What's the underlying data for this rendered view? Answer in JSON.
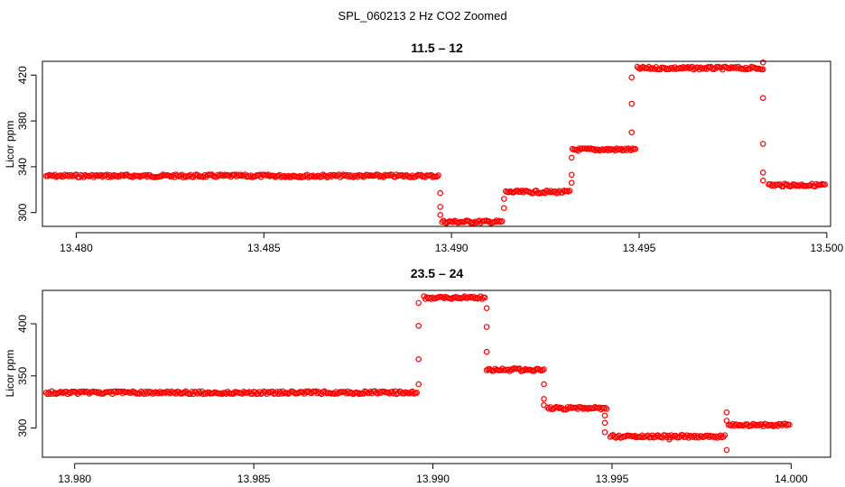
{
  "figure": {
    "title": "SPL_060213  2 Hz CO2 Zoomed",
    "point_color": "#ff0000"
  },
  "chart_data": [
    {
      "type": "scatter",
      "title": "11.5 – 12",
      "xlabel": "",
      "ylabel": "Licor ppm",
      "xlim": [
        13.4791,
        13.5001
      ],
      "ylim": [
        288,
        432
      ],
      "xticks": [
        13.48,
        13.485,
        13.49,
        13.495,
        13.5
      ],
      "xtick_labels": [
        "13.480",
        "13.485",
        "13.490",
        "13.495",
        "13.500"
      ],
      "yticks": [
        300,
        340,
        380,
        420
      ],
      "ytick_labels": [
        "300",
        "340",
        "380",
        "420"
      ],
      "grid": false,
      "series": [
        {
          "segments": [
            {
              "x_start": 13.4792,
              "x_end": 13.48965,
              "y": 332
            },
            {
              "x_start": 13.48975,
              "x_end": 13.49135,
              "y": 292
            },
            {
              "x_start": 13.49145,
              "x_end": 13.49315,
              "y": 318
            },
            {
              "x_start": 13.49322,
              "x_end": 13.4949,
              "y": 355
            },
            {
              "x_start": 13.49495,
              "x_end": 13.4983,
              "y": 426
            },
            {
              "x_start": 13.49845,
              "x_end": 13.49995,
              "y": 324
            }
          ],
          "transitions": [
            {
              "x": 13.4897,
              "y": [
                317,
                305,
                298
              ]
            },
            {
              "x": 13.4914,
              "y": [
                304,
                312
              ]
            },
            {
              "x": 13.4932,
              "y": [
                326,
                333,
                348
              ]
            },
            {
              "x": 13.4948,
              "y": [
                370,
                395,
                418
              ]
            },
            {
              "x": 13.4983,
              "y": [
                431,
                400,
                360,
                335,
                328
              ]
            }
          ]
        }
      ]
    },
    {
      "type": "scatter",
      "title": "23.5 – 24",
      "xlabel": "",
      "ylabel": "Licor ppm",
      "xlim": [
        13.9791,
        14.0011
      ],
      "ylim": [
        272,
        432
      ],
      "xticks": [
        13.98,
        13.985,
        13.99,
        13.995,
        14.0
      ],
      "xtick_labels": [
        "13.980",
        "13.985",
        "13.990",
        "13.995",
        "14.000"
      ],
      "yticks": [
        300,
        350,
        400
      ],
      "ytick_labels": [
        "300",
        "350",
        "400"
      ],
      "grid": false,
      "series": [
        {
          "segments": [
            {
              "x_start": 13.9792,
              "x_end": 13.98955,
              "y": 334
            },
            {
              "x_start": 13.98975,
              "x_end": 13.99145,
              "y": 425
            },
            {
              "x_start": 13.9915,
              "x_end": 13.9931,
              "y": 356
            },
            {
              "x_start": 13.9932,
              "x_end": 13.99485,
              "y": 319
            },
            {
              "x_start": 13.99495,
              "x_end": 13.99815,
              "y": 292
            },
            {
              "x_start": 13.99825,
              "x_end": 13.99995,
              "y": 303
            }
          ],
          "transitions": [
            {
              "x": 13.9896,
              "y": [
                342,
                366,
                398,
                420
              ]
            },
            {
              "x": 13.9915,
              "y": [
                415,
                397,
                373
              ]
            },
            {
              "x": 13.9931,
              "y": [
                342,
                328,
                322
              ]
            },
            {
              "x": 13.9948,
              "y": [
                312,
                305,
                296
              ]
            },
            {
              "x": 13.9966,
              "y": [
                289
              ]
            },
            {
              "x": 13.9982,
              "y": [
                315,
                307,
                279
              ]
            }
          ]
        }
      ]
    }
  ]
}
